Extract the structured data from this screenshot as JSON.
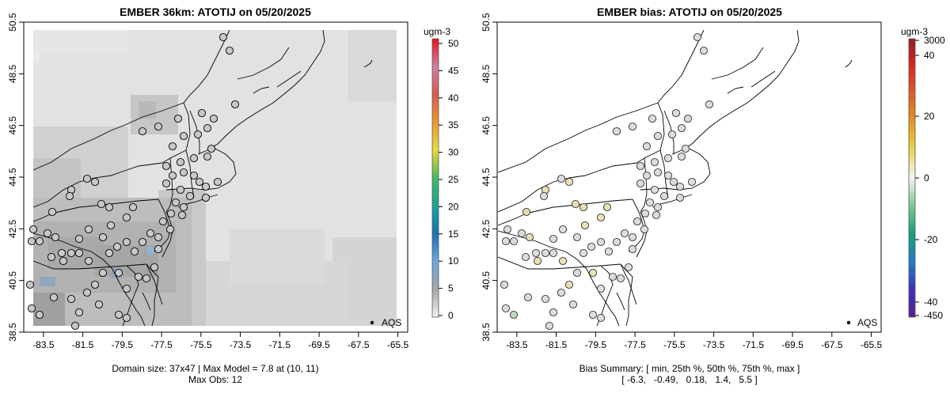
{
  "chart_data": [
    {
      "type": "map",
      "title": "EMBER 36km: ATOTIJ on 05/20/2025",
      "xticks": [
        "-83.5",
        "-81.5",
        "-79.5",
        "-77.5",
        "-75.5",
        "-73.5",
        "-71.5",
        "-69.5",
        "-67.5",
        "-65.5"
      ],
      "yticks": [
        "38.5",
        "40.5",
        "42.5",
        "44.5",
        "46.5",
        "48.5",
        "50.5"
      ],
      "xlim": [
        -84.5,
        -65
      ],
      "ylim": [
        38.5,
        50.5
      ],
      "legend": {
        "unit": "ugm-3",
        "labels": [
          "0",
          "5",
          "10",
          "15",
          "20",
          "25",
          "30",
          "35",
          "40",
          "45",
          "50"
        ],
        "range": [
          0,
          50
        ]
      },
      "point_legend": "AQS",
      "footer": [
        "Domain size: 37x47 | Max Model = 7.8 at (10, 11)",
        "Max Obs: 12"
      ]
    },
    {
      "type": "map",
      "title": "EMBER bias: ATOTIJ on 05/20/2025",
      "xticks": [
        "-83.5",
        "-81.5",
        "-79.5",
        "-77.5",
        "-75.5",
        "-73.5",
        "-71.5",
        "-69.5",
        "-67.5",
        "-65.5"
      ],
      "yticks": [
        "38.5",
        "40.5",
        "42.5",
        "44.5",
        "46.5",
        "48.5",
        "50.5"
      ],
      "xlim": [
        -84.5,
        -65
      ],
      "ylim": [
        38.5,
        50.5
      ],
      "legend": {
        "unit": "ugm-3",
        "top_label": "3000",
        "bottom_label": "-450",
        "labels": [
          "40",
          "20",
          "0",
          "-20",
          "-40"
        ]
      },
      "point_legend": "AQS",
      "bias_summary": {
        "stats": [
          "min",
          "25th %",
          "50th %",
          "75th %",
          "max"
        ],
        "values": [
          -6.3,
          -0.49,
          0.18,
          1.4,
          5.5
        ]
      },
      "footer": [
        "Bias Summary: [ min, 25th %, 50th %, 75th %, max ]",
        "[ -6.3,   -0.49,   0.18,   1.4,   5.5 ]"
      ]
    }
  ]
}
